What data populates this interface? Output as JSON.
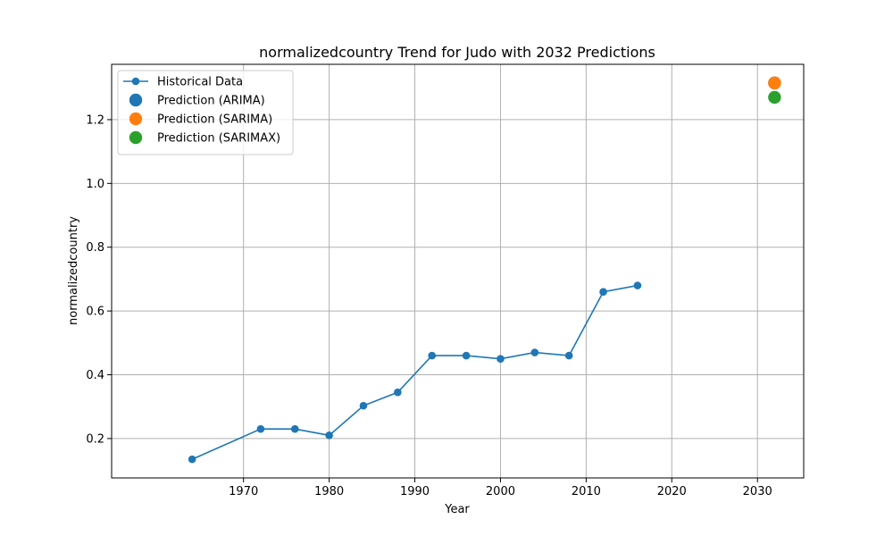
{
  "chart_data": {
    "type": "line",
    "title": "normalizedcountry Trend for Judo with 2032 Predictions",
    "xlabel": "Year",
    "ylabel": "normalizedcountry",
    "xlim": [
      1954.6,
      2035.4
    ],
    "ylim": [
      0.0765,
      1.3735
    ],
    "x_ticks": [
      1970,
      1980,
      1990,
      2000,
      2010,
      2020,
      2030
    ],
    "y_ticks": [
      0.2,
      0.4,
      0.6,
      0.8,
      1.0,
      1.2
    ],
    "x_tick_labels": [
      "1970",
      "1980",
      "1990",
      "2000",
      "2010",
      "2020",
      "2030"
    ],
    "y_tick_labels": [
      "0.2",
      "0.4",
      "0.6",
      "0.8",
      "1.0",
      "1.2"
    ],
    "grid": true,
    "legend_position": "top-left",
    "series": [
      {
        "name": "Historical Data",
        "kind": "line-markers",
        "color": "#1f77b4",
        "x": [
          1964,
          1972,
          1976,
          1980,
          1984,
          1988,
          1992,
          1996,
          2000,
          2004,
          2008,
          2012,
          2016
        ],
        "y": [
          0.135,
          0.23,
          0.23,
          0.21,
          0.303,
          0.345,
          0.46,
          0.46,
          0.45,
          0.47,
          0.46,
          0.66,
          0.68
        ]
      },
      {
        "name": "Prediction (ARIMA)",
        "kind": "point",
        "color": "#1f77b4",
        "x": [
          2032
        ],
        "y": [
          1.315
        ]
      },
      {
        "name": "Prediction (SARIMA)",
        "kind": "point",
        "color": "#ff7f0e",
        "x": [
          2032
        ],
        "y": [
          1.315
        ]
      },
      {
        "name": "Prediction (SARIMAX)",
        "kind": "point",
        "color": "#2ca02c",
        "x": [
          2032
        ],
        "y": [
          1.27
        ]
      }
    ]
  }
}
